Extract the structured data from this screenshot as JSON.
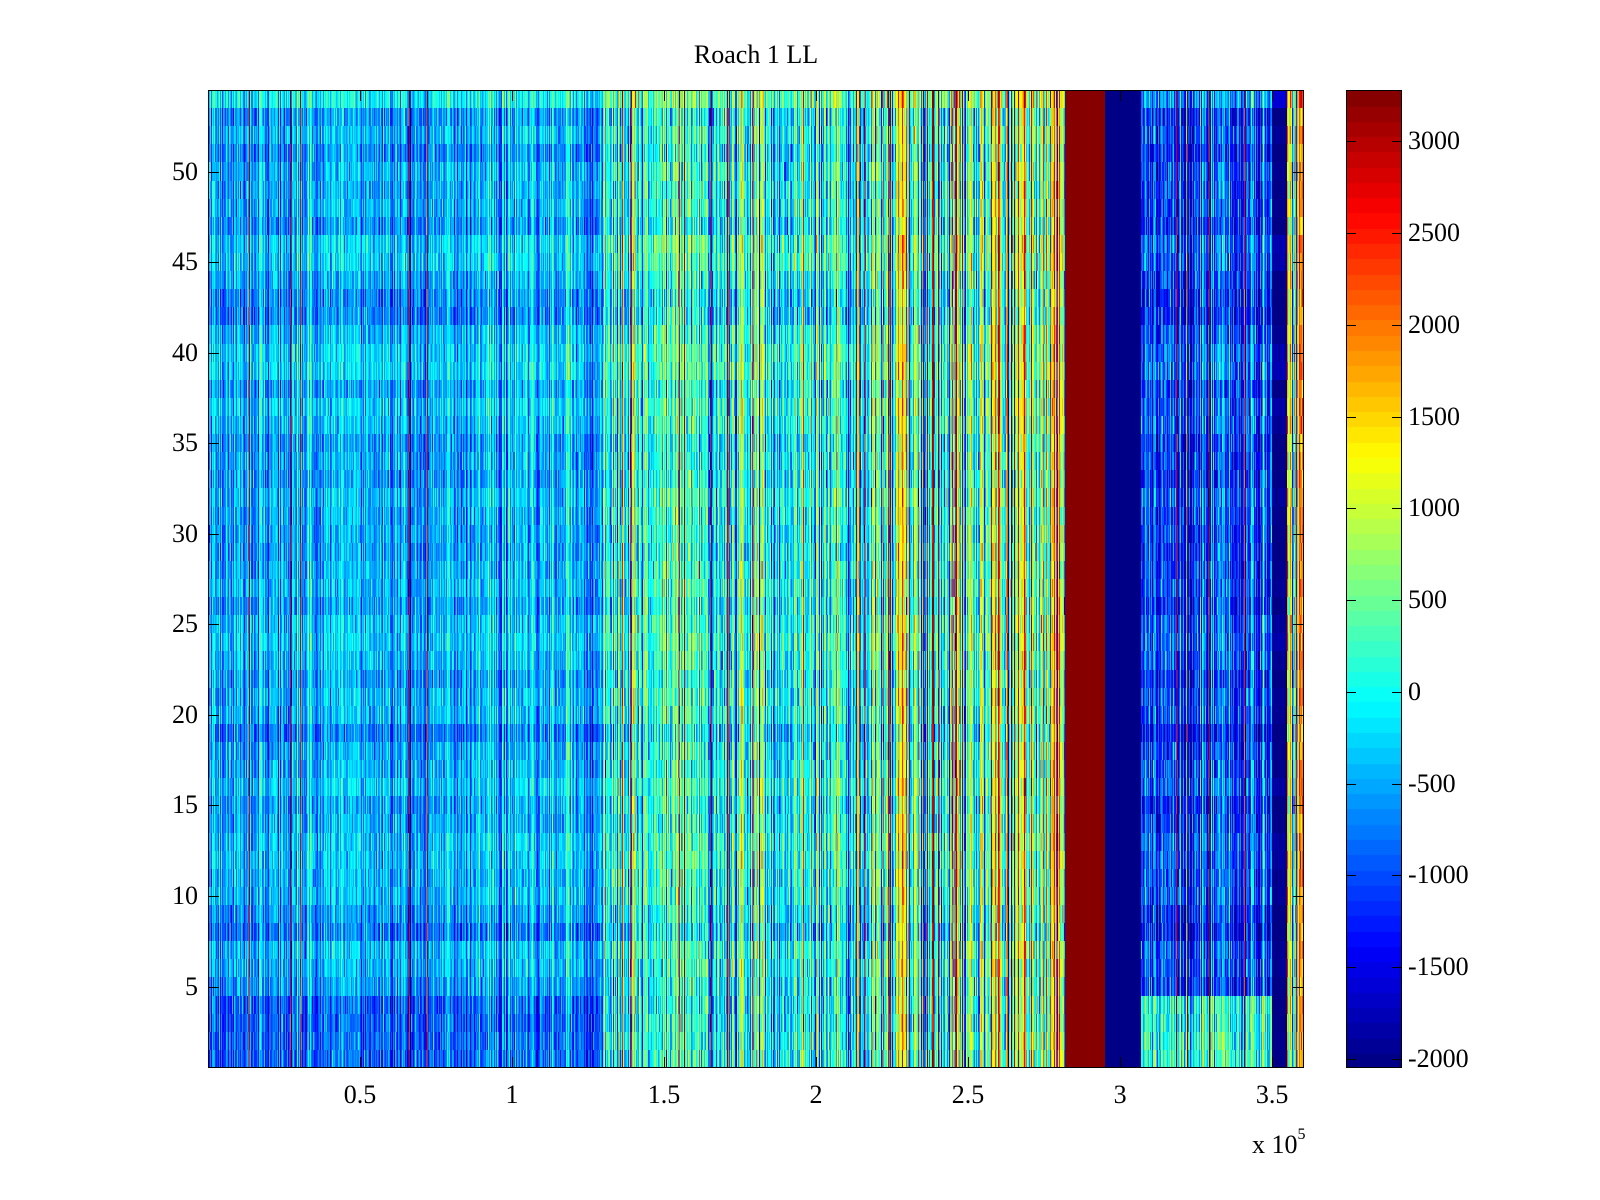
{
  "chart_data": {
    "type": "heatmap",
    "title": "Roach 1 LL",
    "xlabel": "",
    "ylabel": "",
    "x_multiplier_label": "x 10",
    "x_multiplier_exponent": "5",
    "xlim": [
      0,
      3.605
    ],
    "ylim": [
      0.5,
      54.5
    ],
    "rows": 54,
    "xticks": [
      0.5,
      1,
      1.5,
      2,
      2.5,
      3,
      3.5
    ],
    "xtick_labels": [
      "0.5",
      "1",
      "1.5",
      "2",
      "2.5",
      "3",
      "3.5"
    ],
    "yticks": [
      5,
      10,
      15,
      20,
      25,
      30,
      35,
      40,
      45,
      50
    ],
    "ytick_labels": [
      "5",
      "10",
      "15",
      "20",
      "25",
      "30",
      "35",
      "40",
      "45",
      "50"
    ],
    "colormap": "jet",
    "clim": [
      -2050,
      3280
    ],
    "colorbar": {
      "ticks": [
        -2000,
        -1500,
        -1000,
        -500,
        0,
        500,
        1000,
        1500,
        2000,
        2500,
        3000
      ],
      "tick_labels": [
        "-2000",
        "-1500",
        "-1000",
        "-500",
        "0",
        "500",
        "1000",
        "1500",
        "2000",
        "2500",
        "3000"
      ],
      "placement": "right"
    },
    "column_segments": [
      {
        "x_from": 0.0,
        "x_to": 1.3,
        "mean": -450,
        "spread": 350,
        "spike_rate": 0.012,
        "low_rows_offset": -350
      },
      {
        "x_from": 1.3,
        "x_to": 2.2,
        "mean": 50,
        "spread": 650,
        "spike_rate": 0.05,
        "low_rows_offset": 0
      },
      {
        "x_from": 2.2,
        "x_to": 2.82,
        "mean": 400,
        "spread": 900,
        "spike_rate": 0.12,
        "low_rows_offset": 0
      },
      {
        "x_from": 2.82,
        "x_to": 2.95,
        "mean": 3280,
        "spread": 0,
        "spike_rate": 0,
        "low_rows_offset": 0
      },
      {
        "x_from": 2.95,
        "x_to": 3.07,
        "mean": -2050,
        "spread": 0,
        "spike_rate": 0,
        "low_rows_offset": 0
      },
      {
        "x_from": 3.07,
        "x_to": 3.5,
        "mean": -1050,
        "spread": 450,
        "spike_rate": 0.03,
        "low_rows_offset": 1200
      },
      {
        "x_from": 3.5,
        "x_to": 3.55,
        "mean": -2000,
        "spread": 80,
        "spike_rate": 0,
        "low_rows_offset": 0
      },
      {
        "x_from": 3.55,
        "x_to": 3.605,
        "mean": 700,
        "spread": 1200,
        "spike_rate": 0.2,
        "low_rows_offset": 0
      }
    ],
    "low_rows": [
      1,
      2,
      3,
      4
    ],
    "grid": false
  }
}
